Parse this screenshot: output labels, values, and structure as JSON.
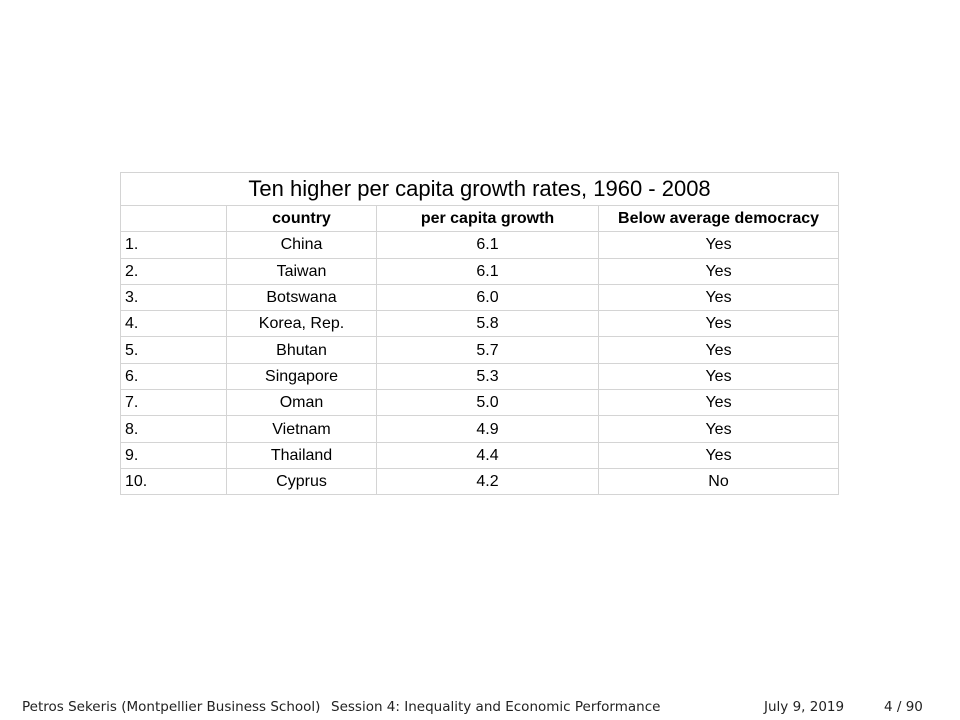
{
  "table": {
    "title": "Ten higher per capita growth rates, 1960 - 2008",
    "headers": [
      "",
      "country",
      "per capita growth",
      "Below average democracy"
    ],
    "rows": [
      {
        "rank": "1.",
        "country": "China",
        "growth": "6.1",
        "democracy": "Yes"
      },
      {
        "rank": "2.",
        "country": "Taiwan",
        "growth": "6.1",
        "democracy": "Yes"
      },
      {
        "rank": "3.",
        "country": "Botswana",
        "growth": "6.0",
        "democracy": "Yes"
      },
      {
        "rank": "4.",
        "country": "Korea, Rep.",
        "growth": "5.8",
        "democracy": "Yes"
      },
      {
        "rank": "5.",
        "country": "Bhutan",
        "growth": "5.7",
        "democracy": "Yes"
      },
      {
        "rank": "6.",
        "country": "Singapore",
        "growth": "5.3",
        "democracy": "Yes"
      },
      {
        "rank": "7.",
        "country": "Oman",
        "growth": "5.0",
        "democracy": "Yes"
      },
      {
        "rank": "8.",
        "country": "Vietnam",
        "growth": "4.9",
        "democracy": "Yes"
      },
      {
        "rank": "9.",
        "country": "Thailand",
        "growth": "4.4",
        "democracy": "Yes"
      },
      {
        "rank": "10.",
        "country": "Cyprus",
        "growth": "4.2",
        "democracy": "No"
      }
    ]
  },
  "footer": {
    "author": "Petros Sekeris  (Montpellier Business School)",
    "session": "Session 4: Inequality and Economic Performance",
    "date": "July 9, 2019",
    "page": "4 / 90"
  }
}
